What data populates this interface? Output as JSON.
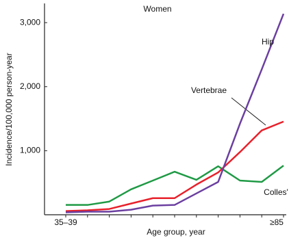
{
  "chart_data": {
    "type": "line",
    "title": "Women",
    "x_label": "Age group, year",
    "y_label": "Incidence/100,000 person-year",
    "categories": [
      "35–39",
      null,
      null,
      null,
      null,
      null,
      null,
      null,
      null,
      null,
      "≥85"
    ],
    "series": [
      {
        "name": "Colles'",
        "color": "#1f9a45",
        "values": [
          153,
          153,
          206,
          397,
          534,
          672,
          545,
          757,
          534,
          513,
          767
        ]
      },
      {
        "name": "Vertebrae",
        "color": "#e8202a",
        "values": [
          58,
          69,
          90,
          175,
          259,
          259,
          471,
          661,
          979,
          1317,
          1455
        ]
      },
      {
        "name": "Hip",
        "color": "#6b3fa0",
        "values": [
          37,
          48,
          48,
          79,
          143,
          153,
          333,
          513,
          1423,
          2270,
          3138
        ]
      }
    ],
    "ylim": [
      0,
      3300
    ],
    "yticks": [
      {
        "value": 1000,
        "label": "1,000"
      },
      {
        "value": 2000,
        "label": "2,000"
      },
      {
        "value": 3000,
        "label": "3,000"
      }
    ],
    "grid": false
  }
}
